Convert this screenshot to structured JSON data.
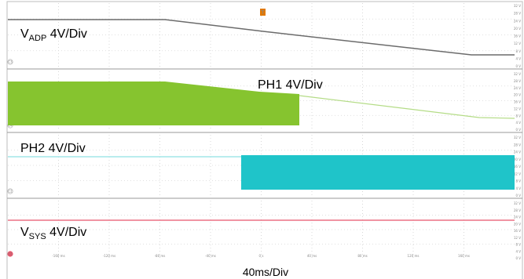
{
  "scope": {
    "trigger_marker": "T",
    "timebase_label": "40ms/Div",
    "x_ticks": [
      "-160 ms",
      "-120 ms",
      "-80 ms",
      "-40 ms",
      "0 s",
      "40 ms",
      "80 ms",
      "120 ms",
      "160 ms"
    ],
    "y_ticks": [
      "32 V",
      "28 V",
      "24 V",
      "20 V",
      "16 V",
      "12 V",
      "8 V",
      "4 V",
      "0 V"
    ],
    "channels": [
      {
        "id": "vadp",
        "label_main": "V",
        "label_sub": "ADP",
        "label_rest": " 4V/Div",
        "marker": "C3",
        "color": "#6b6b6b"
      },
      {
        "id": "ph1",
        "label_main": "PH1 4V/Div",
        "label_sub": "",
        "label_rest": "",
        "marker": "C4",
        "color": "#86c42f"
      },
      {
        "id": "ph2",
        "label_main": "PH2 4V/Div",
        "label_sub": "",
        "label_rest": "",
        "marker": "C2",
        "color": "#1fc4c9"
      },
      {
        "id": "vsys",
        "label_main": "V",
        "label_sub": "SYS",
        "label_rest": " 4V/Div",
        "marker": "C1",
        "color": "#e8556b"
      }
    ]
  }
}
